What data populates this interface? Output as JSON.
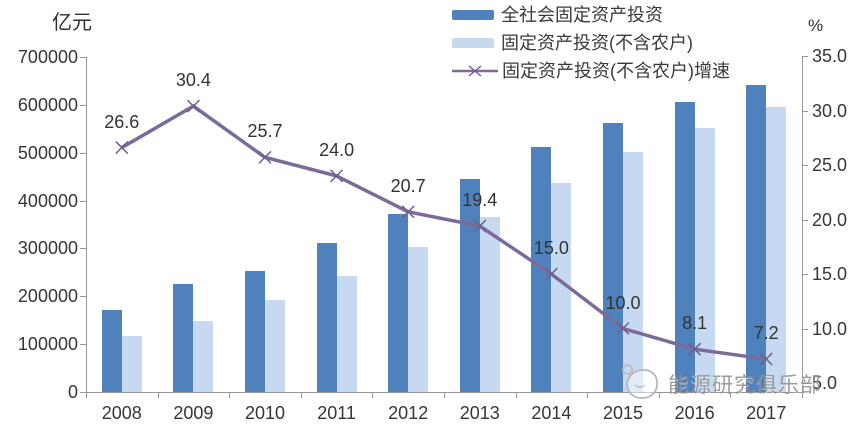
{
  "chart_data": {
    "type": "bar",
    "subtype": "grouped-bar-with-line-combo",
    "title": "",
    "categories": [
      "2008",
      "2009",
      "2010",
      "2011",
      "2012",
      "2013",
      "2014",
      "2015",
      "2016",
      "2017"
    ],
    "series": [
      {
        "name": "全社会固定资产投资",
        "type": "bar",
        "axis": "left",
        "color": "#4f81bd",
        "values": [
          172000,
          225000,
          252000,
          311000,
          372000,
          446000,
          512000,
          562000,
          607000,
          641000
        ]
      },
      {
        "name": "固定资产投资(不含农户)",
        "type": "bar",
        "axis": "left",
        "color": "#c7d9f1",
        "values": [
          117000,
          148000,
          193000,
          242000,
          304000,
          365000,
          436000,
          502000,
          552000,
          596000
        ]
      },
      {
        "name": "固定资产投资(不含农户)增速",
        "type": "line",
        "axis": "right",
        "color": "#7b6b9b",
        "marker": "x",
        "marker_color": "#6d5e8e",
        "values": [
          26.6,
          30.4,
          25.7,
          24.0,
          20.7,
          19.4,
          15.0,
          10.0,
          8.1,
          7.2
        ],
        "point_labels": [
          "26.6",
          "30.4",
          "25.7",
          "24.0",
          "20.7",
          "19.4",
          "15.0",
          "10.0",
          "8.1",
          "7.2"
        ]
      }
    ],
    "left_axis": {
      "unit": "亿元",
      "min": 0,
      "max": 700000,
      "step": 100000,
      "tick_labels": [
        "700000",
        "600000",
        "500000",
        "400000",
        "300000",
        "200000",
        "100000",
        "0"
      ]
    },
    "right_axis": {
      "unit": "%",
      "top_value": 35.0,
      "tick_step": 5.0,
      "tick_labels": [
        "35.0",
        "30.0",
        "25.0",
        "20.0",
        "15.0",
        "10.0",
        "5.0"
      ]
    },
    "legend_position": "top-center",
    "grid": false
  },
  "watermark": {
    "text": "能源研究俱乐部"
  }
}
